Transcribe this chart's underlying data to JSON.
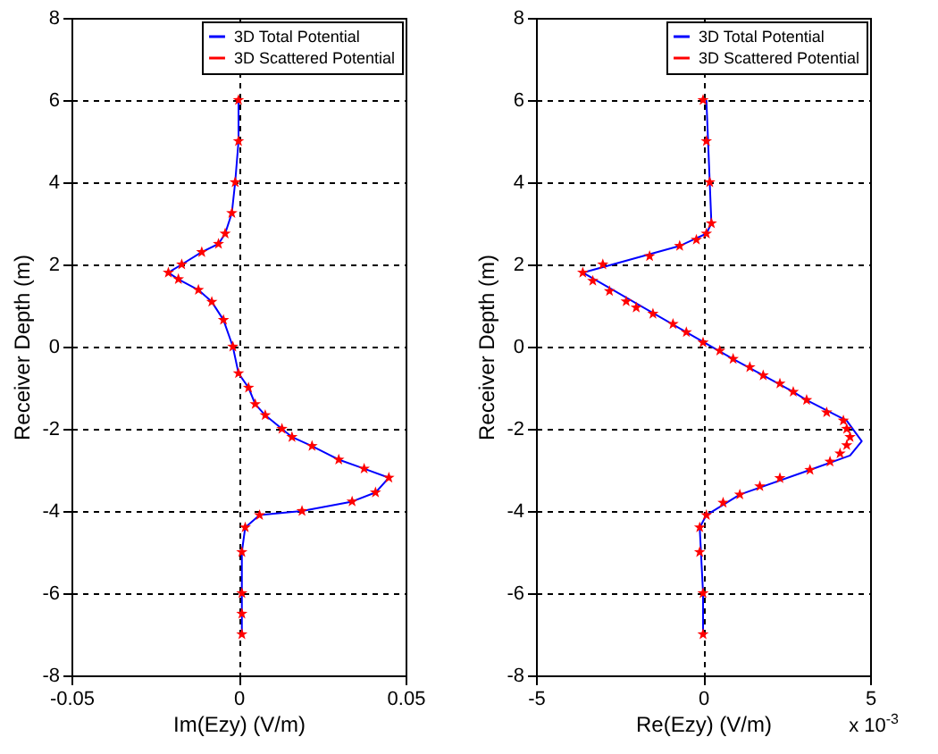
{
  "chart_data": [
    {
      "type": "line",
      "xlabel": "Im(Ezy) (V/m)",
      "ylabel": "Receiver Depth (m)",
      "xlim": [
        -0.05,
        0.05
      ],
      "xticks": [
        -0.05,
        {
          "value": 0,
          "label": "0"
        },
        0.05
      ],
      "ylim": [
        -8,
        8
      ],
      "yticks": [
        -8,
        -6,
        -4,
        -2,
        0,
        2,
        4,
        6,
        8
      ],
      "grid": true,
      "legend": "top right",
      "series": [
        {
          "name": "3D Total Potential",
          "type": "line",
          "color": "#0000ff",
          "line_style": "solid",
          "x": [
            0,
            0,
            -0.001,
            -0.002,
            -0.004,
            -0.006,
            -0.011,
            -0.017,
            -0.021,
            -0.018,
            -0.012,
            -0.008,
            -0.0045,
            -0.0017,
            0,
            0.003,
            0.005,
            0.008,
            0.013,
            0.016,
            0.022,
            0.03,
            0.0376,
            0.045,
            0.041,
            0.034,
            0.019,
            0.0063,
            0.002,
            0.001,
            0.001,
            0.001,
            0.001
          ],
          "values": [
            6,
            5,
            4,
            3.25,
            2.75,
            2.5,
            2.3,
            2.0,
            1.8,
            1.64,
            1.38,
            1.09,
            0.65,
            0,
            -0.65,
            -1.0,
            -1.4,
            -1.67,
            -2.0,
            -2.2,
            -2.42,
            -2.75,
            -2.97,
            -3.19,
            -3.55,
            -3.77,
            -4.0,
            -4.1,
            -4.4,
            -5,
            -6,
            -6.5,
            -7
          ]
        },
        {
          "name": "3D Scattered Potential",
          "type": "scatter",
          "color": "#ff0000",
          "marker": "star",
          "x": [
            0,
            0,
            -0.001,
            -0.002,
            -0.004,
            -0.006,
            -0.011,
            -0.017,
            -0.021,
            -0.018,
            -0.012,
            -0.008,
            -0.0045,
            -0.0017,
            0,
            0.003,
            0.005,
            0.008,
            0.013,
            0.016,
            0.022,
            0.03,
            0.0376,
            0.045,
            0.041,
            0.034,
            0.019,
            0.0063,
            0.002,
            0.001,
            0.001,
            0.001,
            0.001
          ],
          "values": [
            6,
            5,
            4,
            3.25,
            2.75,
            2.5,
            2.3,
            2.0,
            1.8,
            1.64,
            1.38,
            1.09,
            0.65,
            0,
            -0.65,
            -1.0,
            -1.4,
            -1.67,
            -2.0,
            -2.2,
            -2.42,
            -2.75,
            -2.97,
            -3.19,
            -3.55,
            -3.77,
            -4.0,
            -4.1,
            -4.4,
            -5,
            -6,
            -6.5,
            -7
          ]
        }
      ]
    },
    {
      "type": "line",
      "xlabel": "Re(Ezy) (V/m)",
      "ylabel": "Receiver Depth (m)",
      "xlim": [
        -5,
        5
      ],
      "xticks": [
        -5,
        0,
        5
      ],
      "ylim": [
        -8,
        8
      ],
      "yticks": [
        -8,
        -6,
        -4,
        -2,
        0,
        2,
        4,
        6,
        8
      ],
      "grid": true,
      "legend": "top right",
      "annotations": [
        "x 10$^{-3}$"
      ],
      "series": [
        {
          "name": "3D Total Potential",
          "type": "line",
          "color": "#0000ff",
          "line_style": "solid",
          "x": [
            0.1,
            0.2,
            0.25,
            0.1,
            -0.7,
            -3.6,
            -0.5,
            0.9,
            1.8,
            2.7,
            3.1,
            4.3,
            4.75,
            4.4,
            3.2,
            1.1,
            0.1,
            -0.1,
            0,
            0
          ],
          "values": [
            6,
            4,
            3,
            2.75,
            2.45,
            1.8,
            0.35,
            -0.3,
            -0.7,
            -1.1,
            -1.3,
            -1.8,
            -2.3,
            -2.65,
            -3.0,
            -3.6,
            -4.1,
            -4.4,
            -6,
            -7
          ]
        },
        {
          "name": "3D Scattered Potential",
          "type": "scatter",
          "color": "#ff0000",
          "marker": "star",
          "x": [
            0,
            0.1,
            0.2,
            0.25,
            0.1,
            -0.2,
            -0.7,
            -1.6,
            -3.0,
            -3.6,
            -3.3,
            -2.8,
            -2.3,
            -2.0,
            -1.5,
            -0.9,
            -0.5,
            0,
            0.5,
            0.9,
            1.4,
            1.8,
            2.3,
            2.7,
            3.1,
            3.7,
            4.2,
            4.3,
            4.4,
            4.3,
            4.1,
            3.8,
            3.2,
            2.3,
            1.7,
            1.1,
            0.6,
            0.1,
            -0.1,
            -0.1,
            0,
            0
          ],
          "values": [
            6,
            5,
            4,
            3,
            2.75,
            2.6,
            2.45,
            2.2,
            2.0,
            1.8,
            1.6,
            1.35,
            1.1,
            0.95,
            0.8,
            0.55,
            0.35,
            0.1,
            -0.1,
            -0.3,
            -0.5,
            -0.7,
            -0.9,
            -1.1,
            -1.3,
            -1.6,
            -1.8,
            -2.0,
            -2.2,
            -2.4,
            -2.6,
            -2.8,
            -3.0,
            -3.2,
            -3.4,
            -3.6,
            -3.8,
            -4.1,
            -4.4,
            -5,
            -6,
            -7
          ]
        }
      ]
    }
  ]
}
